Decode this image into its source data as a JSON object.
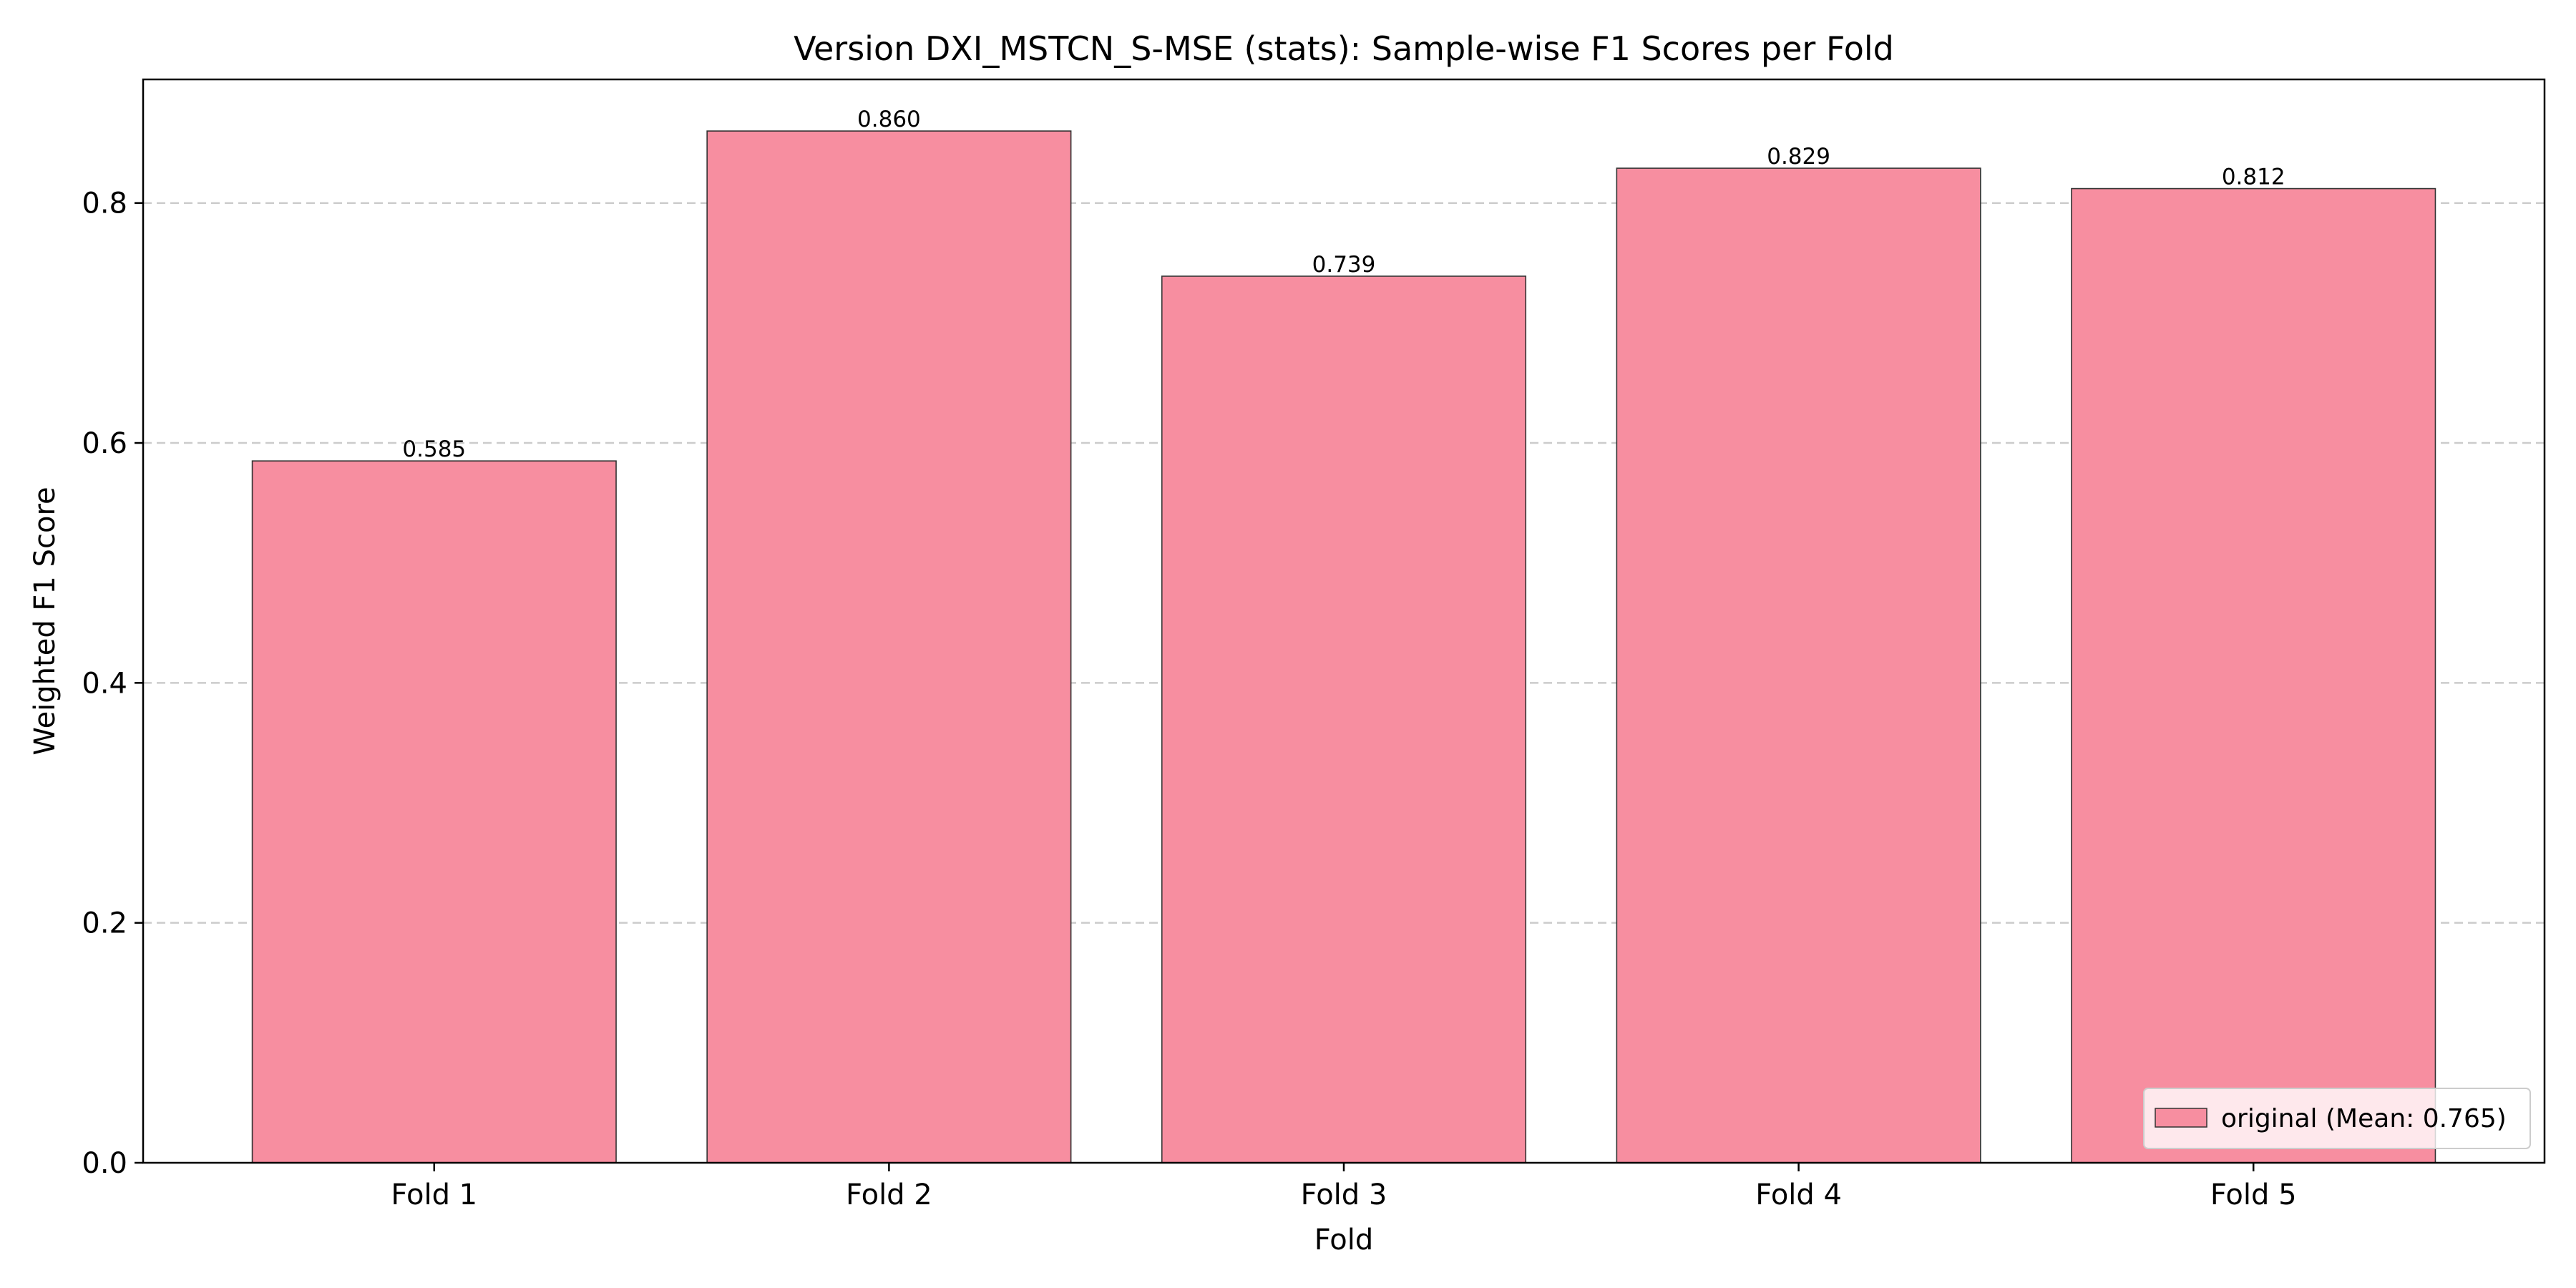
{
  "chart_data": {
    "type": "bar",
    "title": "Version DXI_MSTCN_S-MSE (stats): Sample-wise F1 Scores per Fold",
    "xlabel": "Fold",
    "ylabel": "Weighted F1 Score",
    "categories": [
      "Fold 1",
      "Fold 2",
      "Fold 3",
      "Fold 4",
      "Fold 5"
    ],
    "series": [
      {
        "name": "original (Mean: 0.765)",
        "values": [
          0.585,
          0.86,
          0.739,
          0.829,
          0.812
        ],
        "value_labels": [
          "0.585",
          "0.860",
          "0.739",
          "0.829",
          "0.812"
        ],
        "color": "#f78ea0",
        "edge_color": "#333333"
      }
    ],
    "ylim": [
      0,
      0.903
    ],
    "yticks": [
      0.0,
      0.2,
      0.4,
      0.6,
      0.8
    ],
    "ytick_labels": [
      "0.0",
      "0.2",
      "0.4",
      "0.6",
      "0.8"
    ],
    "grid": "y, dashed",
    "legend_placement": "lower-right"
  }
}
